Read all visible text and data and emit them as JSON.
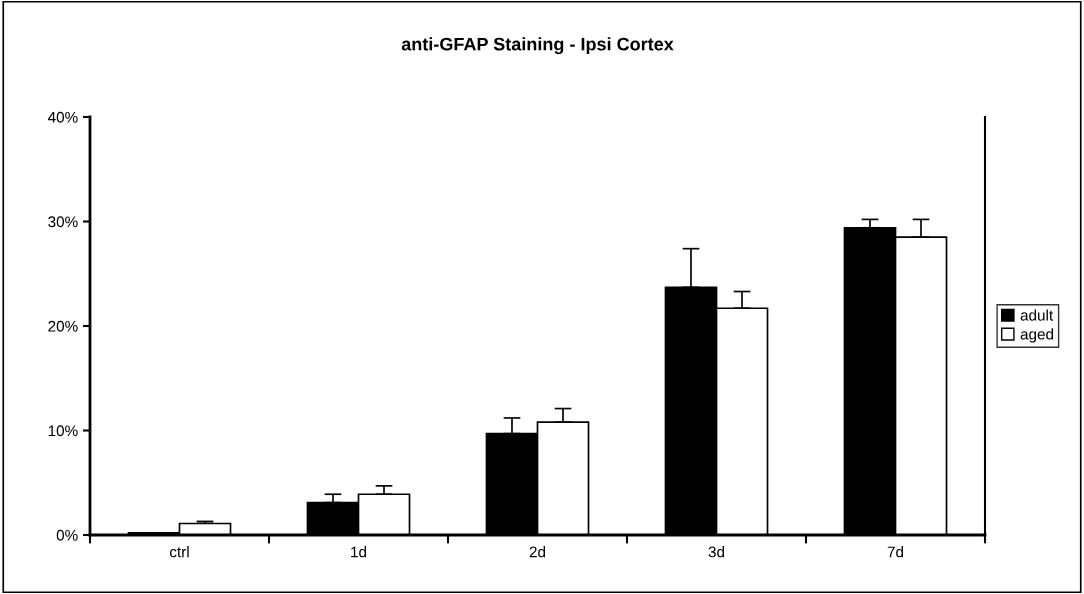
{
  "chart_data": {
    "type": "bar",
    "title": "anti-GFAP Staining - Ipsi Cortex",
    "categories": [
      "ctrl",
      "1d",
      "2d",
      "3d",
      "7d"
    ],
    "series": [
      {
        "name": "adult",
        "color": "#000000",
        "values": [
          0.2,
          3.1,
          9.7,
          23.7,
          29.4
        ],
        "errors": [
          null,
          [
            3.1,
            3.9
          ],
          [
            9.7,
            11.2
          ],
          [
            23.7,
            27.4
          ],
          [
            29.4,
            30.2
          ]
        ]
      },
      {
        "name": "aged",
        "color": "#ffffff",
        "values": [
          1.1,
          3.9,
          10.8,
          21.7,
          28.5
        ],
        "errors": [
          [
            1.1,
            1.3
          ],
          [
            3.9,
            4.7
          ],
          [
            10.8,
            12.1
          ],
          [
            21.7,
            23.3
          ],
          [
            28.5,
            30.2
          ]
        ]
      }
    ],
    "ylim": [
      0,
      40
    ],
    "yticks": [
      {
        "value": 0,
        "label": "0%"
      },
      {
        "value": 10,
        "label": "10%"
      },
      {
        "value": 20,
        "label": "20%"
      },
      {
        "value": 30,
        "label": "30%"
      },
      {
        "value": 40,
        "label": "40%"
      }
    ],
    "grid": false,
    "legend": "right"
  }
}
